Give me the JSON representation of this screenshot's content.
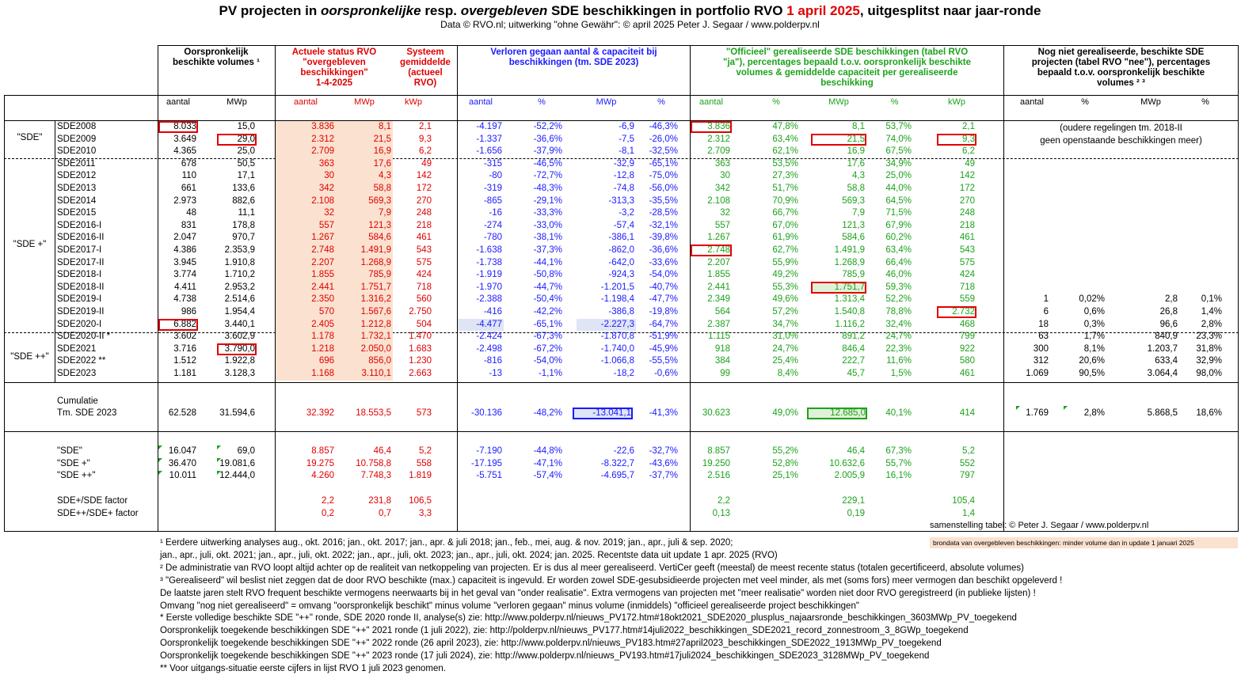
{
  "title": {
    "p1": "PV projecten in ",
    "p2": "oorspronkelijke",
    "p3": " resp. ",
    "p4": "overgebleven",
    "p5": " SDE beschikkingen in portfolio RVO ",
    "p6": "1 april 2025",
    "p7": ", uitgesplitst naar jaar-ronde"
  },
  "subtitle": "Data © RVO.nl; uitwerking \"ohne Gewähr\": © april 2025 Peter J. Segaar / www.polderpv.nl",
  "headers": {
    "orig": "Oorspronkelijk\nbeschikte volumes ¹",
    "actueel": "Actuele  status  RVO\n\"overgebleven\nbeschikkingen\"\n1-4-2025",
    "systeem": "Systeem\ngemiddelde\n(actueel\nRVO)",
    "verloren": "Verloren gegaan aantal & capaciteit bij\nbeschikkingen (tm. SDE 2023)",
    "officieel": "\"Officieel\" gerealiseerde SDE beschikkingen (tabel RVO\n\"ja\"), percentages bepaald t.o.v. oorspronkelijk beschikte\nvolumes & gemiddelde capaciteit per gerealiseerde\nbeschikking",
    "nog": "Nog niet gerealiseerde, beschikte SDE\nprojecten (tabel RVO \"nee\"), percentages\nbepaald t.o.v. oorspronkelijk beschikte\nvolumes ² ³"
  },
  "colheads": [
    "aantal",
    "MWp",
    "aantal",
    "MWp",
    "kWp",
    "aantal",
    "%",
    "MWp",
    "%",
    "aantal",
    "%",
    "MWp",
    "%",
    "kWp",
    "aantal",
    "%",
    "MWp",
    "%"
  ],
  "groups": {
    "sde": "\"SDE\"",
    "sdeplus": "\"SDE +\"",
    "sdepp": "\"SDE ++\""
  },
  "rows": [
    {
      "n": "SDE2008",
      "v": [
        "8.033",
        "15,0",
        "3.836",
        "8,1",
        "2,1",
        "-4.197",
        "-52,2%",
        "-6,9",
        "-46,3%",
        "3.836",
        "47,8%",
        "8,1",
        "53,7%",
        "2,1",
        "",
        "",
        "",
        ""
      ]
    },
    {
      "n": "SDE2009",
      "v": [
        "3.649",
        "29,0",
        "2.312",
        "21,5",
        "9,3",
        "-1.337",
        "-36,6%",
        "-7,5",
        "-26,0%",
        "2.312",
        "63,4%",
        "21,5",
        "74,0%",
        "9,3",
        "",
        "",
        "",
        ""
      ]
    },
    {
      "n": "SDE2010",
      "v": [
        "4.365",
        "25,0",
        "2.709",
        "16,9",
        "6,2",
        "-1.656",
        "-37,9%",
        "-8,1",
        "-32,5%",
        "2.709",
        "62,1%",
        "16,9",
        "67,5%",
        "6,2",
        "",
        "",
        "",
        ""
      ]
    },
    {
      "n": "SDE2011",
      "v": [
        "678",
        "50,5",
        "363",
        "17,6",
        "49",
        "-315",
        "-46,5%",
        "-32,9",
        "-65,1%",
        "363",
        "53,5%",
        "17,6",
        "34,9%",
        "49",
        "",
        "",
        "",
        ""
      ]
    },
    {
      "n": "SDE2012",
      "v": [
        "110",
        "17,1",
        "30",
        "4,3",
        "142",
        "-80",
        "-72,7%",
        "-12,8",
        "-75,0%",
        "30",
        "27,3%",
        "4,3",
        "25,0%",
        "142",
        "",
        "",
        "",
        ""
      ]
    },
    {
      "n": "SDE2013",
      "v": [
        "661",
        "133,6",
        "342",
        "58,8",
        "172",
        "-319",
        "-48,3%",
        "-74,8",
        "-56,0%",
        "342",
        "51,7%",
        "58,8",
        "44,0%",
        "172",
        "",
        "",
        "",
        ""
      ]
    },
    {
      "n": "SDE2014",
      "v": [
        "2.973",
        "882,6",
        "2.108",
        "569,3",
        "270",
        "-865",
        "-29,1%",
        "-313,3",
        "-35,5%",
        "2.108",
        "70,9%",
        "569,3",
        "64,5%",
        "270",
        "",
        "",
        "",
        ""
      ]
    },
    {
      "n": "SDE2015",
      "v": [
        "48",
        "11,1",
        "32",
        "7,9",
        "248",
        "-16",
        "-33,3%",
        "-3,2",
        "-28,5%",
        "32",
        "66,7%",
        "7,9",
        "71,5%",
        "248",
        "",
        "",
        "",
        ""
      ]
    },
    {
      "n": "SDE2016-I",
      "v": [
        "831",
        "178,8",
        "557",
        "121,3",
        "218",
        "-274",
        "-33,0%",
        "-57,4",
        "-32,1%",
        "557",
        "67,0%",
        "121,3",
        "67,9%",
        "218",
        "",
        "",
        "",
        ""
      ]
    },
    {
      "n": "SDE2016-II",
      "v": [
        "2.047",
        "970,7",
        "1.267",
        "584,6",
        "461",
        "-780",
        "-38,1%",
        "-386,1",
        "-39,8%",
        "1.267",
        "61,9%",
        "584,6",
        "60,2%",
        "461",
        "",
        "",
        "",
        ""
      ]
    },
    {
      "n": "SDE2017-I",
      "v": [
        "4.386",
        "2.353,9",
        "2.748",
        "1.491,9",
        "543",
        "-1.638",
        "-37,3%",
        "-862,0",
        "-36,6%",
        "2.748",
        "62,7%",
        "1.491,9",
        "63,4%",
        "543",
        "",
        "",
        "",
        ""
      ]
    },
    {
      "n": "SDE2017-II",
      "v": [
        "3.945",
        "1.910,8",
        "2.207",
        "1.268,9",
        "575",
        "-1.738",
        "-44,1%",
        "-642,0",
        "-33,6%",
        "2.207",
        "55,9%",
        "1.268,9",
        "66,4%",
        "575",
        "",
        "",
        "",
        ""
      ]
    },
    {
      "n": "SDE2018-I",
      "v": [
        "3.774",
        "1.710,2",
        "1.855",
        "785,9",
        "424",
        "-1.919",
        "-50,8%",
        "-924,3",
        "-54,0%",
        "1.855",
        "49,2%",
        "785,9",
        "46,0%",
        "424",
        "",
        "",
        "",
        ""
      ]
    },
    {
      "n": "SDE2018-II",
      "v": [
        "4.411",
        "2.953,2",
        "2.441",
        "1.751,7",
        "718",
        "-1.970",
        "-44,7%",
        "-1.201,5",
        "-40,7%",
        "2.441",
        "55,3%",
        "1.751,7",
        "59,3%",
        "718",
        "",
        "",
        "",
        ""
      ]
    },
    {
      "n": "SDE2019-I",
      "v": [
        "4.738",
        "2.514,6",
        "2.350",
        "1.316,2",
        "560",
        "-2.388",
        "-50,4%",
        "-1.198,4",
        "-47,7%",
        "2.349",
        "49,6%",
        "1.313,4",
        "52,2%",
        "559",
        "1",
        "0,02%",
        "2,8",
        "0,1%"
      ]
    },
    {
      "n": "SDE2019-II",
      "v": [
        "986",
        "1.954,4",
        "570",
        "1.567,6",
        "2.750",
        "-416",
        "-42,2%",
        "-386,8",
        "-19,8%",
        "564",
        "57,2%",
        "1.540,8",
        "78,8%",
        "2.732",
        "6",
        "0,6%",
        "26,8",
        "1,4%"
      ]
    },
    {
      "n": "SDE2020-I",
      "v": [
        "6.882",
        "3.440,1",
        "2.405",
        "1.212,8",
        "504",
        "-4.477",
        "-65,1%",
        "-2.227,3",
        "-64,7%",
        "2.387",
        "34,7%",
        "1.116,2",
        "32,4%",
        "468",
        "18",
        "0,3%",
        "96,6",
        "2,8%"
      ]
    },
    {
      "n": "SDE2020-II *",
      "v": [
        "3.602",
        "3.602,9",
        "1.178",
        "1.732,1",
        "1.470",
        "-2.424",
        "-67,3%",
        "-1.870,8",
        "-51,9%",
        "1.115",
        "31,0%",
        "891,2",
        "24,7%",
        "799",
        "63",
        "1,7%",
        "840,9",
        "23,3%"
      ]
    },
    {
      "n": "SDE2021",
      "v": [
        "3.716",
        "3.790,0",
        "1.218",
        "2.050,0",
        "1.683",
        "-2.498",
        "-67,2%",
        "-1.740,0",
        "-45,9%",
        "918",
        "24,7%",
        "846,4",
        "22,3%",
        "922",
        "300",
        "8,1%",
        "1.203,7",
        "31,8%"
      ]
    },
    {
      "n": "SDE2022 **",
      "v": [
        "1.512",
        "1.922,8",
        "696",
        "856,0",
        "1.230",
        "-816",
        "-54,0%",
        "-1.066,8",
        "-55,5%",
        "384",
        "25,4%",
        "222,7",
        "11,6%",
        "580",
        "312",
        "20,6%",
        "633,4",
        "32,9%"
      ]
    },
    {
      "n": "SDE2023",
      "v": [
        "1.181",
        "3.128,3",
        "1.168",
        "3.110,1",
        "2.663",
        "-13",
        "-1,1%",
        "-18,2",
        "-0,6%",
        "99",
        "8,4%",
        "45,7",
        "1,5%",
        "461",
        "1.069",
        "90,5%",
        "3.064,4",
        "98,0%"
      ]
    }
  ],
  "oudere": "(oudere regelingen tm. 2018-II\ngeen openstaande beschikkingen meer)",
  "cumulatie": {
    "l1": "Cumulatie",
    "l2": "Tm. SDE 2023",
    "v": [
      "62.528",
      "31.594,6",
      "32.392",
      "18.553,5",
      "573",
      "-30.136",
      "-48,2%",
      "-13.041,1",
      "-41,3%",
      "30.623",
      "49,0%",
      "12.685,0",
      "40,1%",
      "414",
      "1.769",
      "2,8%",
      "5.868,5",
      "18,6%"
    ]
  },
  "summary": [
    {
      "n": "\"SDE\"",
      "v": [
        "16.047",
        "69,0",
        "8.857",
        "46,4",
        "5,2",
        "-7.190",
        "-44,8%",
        "-22,6",
        "-32,7%",
        "8.857",
        "55,2%",
        "46,4",
        "67,3%",
        "5,2"
      ]
    },
    {
      "n": "\"SDE +\"",
      "v": [
        "36.470",
        "19.081,6",
        "19.275",
        "10.758,8",
        "558",
        "-17.195",
        "-47,1%",
        "-8.322,7",
        "-43,6%",
        "19.250",
        "52,8%",
        "10.632,6",
        "55,7%",
        "552"
      ]
    },
    {
      "n": "\"SDE ++\"",
      "v": [
        "10.011",
        "12.444,0",
        "4.260",
        "7.748,3",
        "1.819",
        "-5.751",
        "-57,4%",
        "-4.695,7",
        "-37,7%",
        "2.516",
        "25,1%",
        "2.005,9",
        "16,1%",
        "797"
      ]
    }
  ],
  "factors": [
    {
      "n": "SDE+/SDE factor",
      "v": [
        "2,2",
        "231,8",
        "106,5",
        "2,2",
        "229,1",
        "105,4"
      ]
    },
    {
      "n": "SDE++/SDE+ factor",
      "v": [
        "0,2",
        "0,7",
        "3,3",
        "0,13",
        "0,19",
        "1,4"
      ]
    }
  ],
  "credit": "samenstelling tabel: © Peter J. Segaar / www.polderpv.nl",
  "legend": "brondata van overgebleven beschikkingen: minder volume dan in update 1 januari 2025",
  "notes": [
    "¹ Eerdere uitwerking analyses aug., okt. 2016; jan., okt.  2017; jan., apr. & juli 2018; jan., feb., mei, aug. & nov. 2019; jan., apr., juli & sep. 2020;",
    " jan., apr., juli, okt. 2021; jan., apr., juli, okt. 2022; jan., apr., juli, okt. 2023; jan., apr., juli, okt. 2024; jan. 2025. Recentste data uit update 1 apr. 2025 (RVO)",
    "² De administratie van RVO loopt altijd achter op de realiteit van netkoppeling van projecten. Er is dus al meer gerealiseerd. VertiCer geeft (meestal) de meest recente status (totalen gecertificeerd, absolute volumes)",
    "³ \"Gerealiseerd\" wil beslist niet zeggen dat de door RVO beschikte (max.) capaciteit is ingevuld. Er worden zowel SDE-gesubsidieerde projecten met veel minder,  als met (soms fors) meer  vermogen dan beschikt opgeleverd !",
    "De laatste jaren stelt RVO frequent beschikte vermogens neerwaarts bij in het geval van \"onder realisatie\". Extra vermogens van projecten met \"meer realisatie\" worden niet door RVO geregistreerd (in publieke lijsten) !",
    "Omvang \"nog niet gerealiseerd\" = omvang \"oorspronkelijk beschikt\" minus volume \"verloren gegaan\" minus volume (inmiddels) \"officieel gerealiseerde project beschikkingen\"",
    "* Eerste volledige beschikte SDE \"++\" ronde, SDE 2020 ronde II, analyse(s) zie: http://www.polderpv.nl/nieuws_PV172.htm#18okt2021_SDE2020_plusplus_najaarsronde_beschikkingen_3603MWp_PV_toegekend",
    "Oorspronkelijk toegekende beschikkingen SDE \"++\" 2021 ronde (1 juli 2022), zie: http://polderpv.nl/nieuws_PV177.htm#14juli2022_beschikkingen_SDE2021_record_zonnestroom_3_8GWp_toegekend",
    "Oorspronkelijk toegekende beschikkingen SDE \"++\" 2022 ronde (26 april 2023), zie: http://www.polderpv.nl/nieuws_PV183.htm#27april2023_beschikkingen_SDE2022_1913MWp_PV_toegekend",
    "Oorspronkelijk toegekende beschikkingen SDE \"++\" 2023 ronde (17 juli 2024), zie: http://www.polderpv.nl/nieuws_PV193.htm#17juli2024_beschikkingen_SDE2023_3128MWp_PV_toegekend",
    "** Voor uitgangs-situatie eerste cijfers in lijst RVO 1 juli 2023 genomen."
  ],
  "colors": {
    "red": "#e00000",
    "blue": "#1a1aff",
    "green": "#1ca21c",
    "salmon": "#fbe1cf"
  }
}
